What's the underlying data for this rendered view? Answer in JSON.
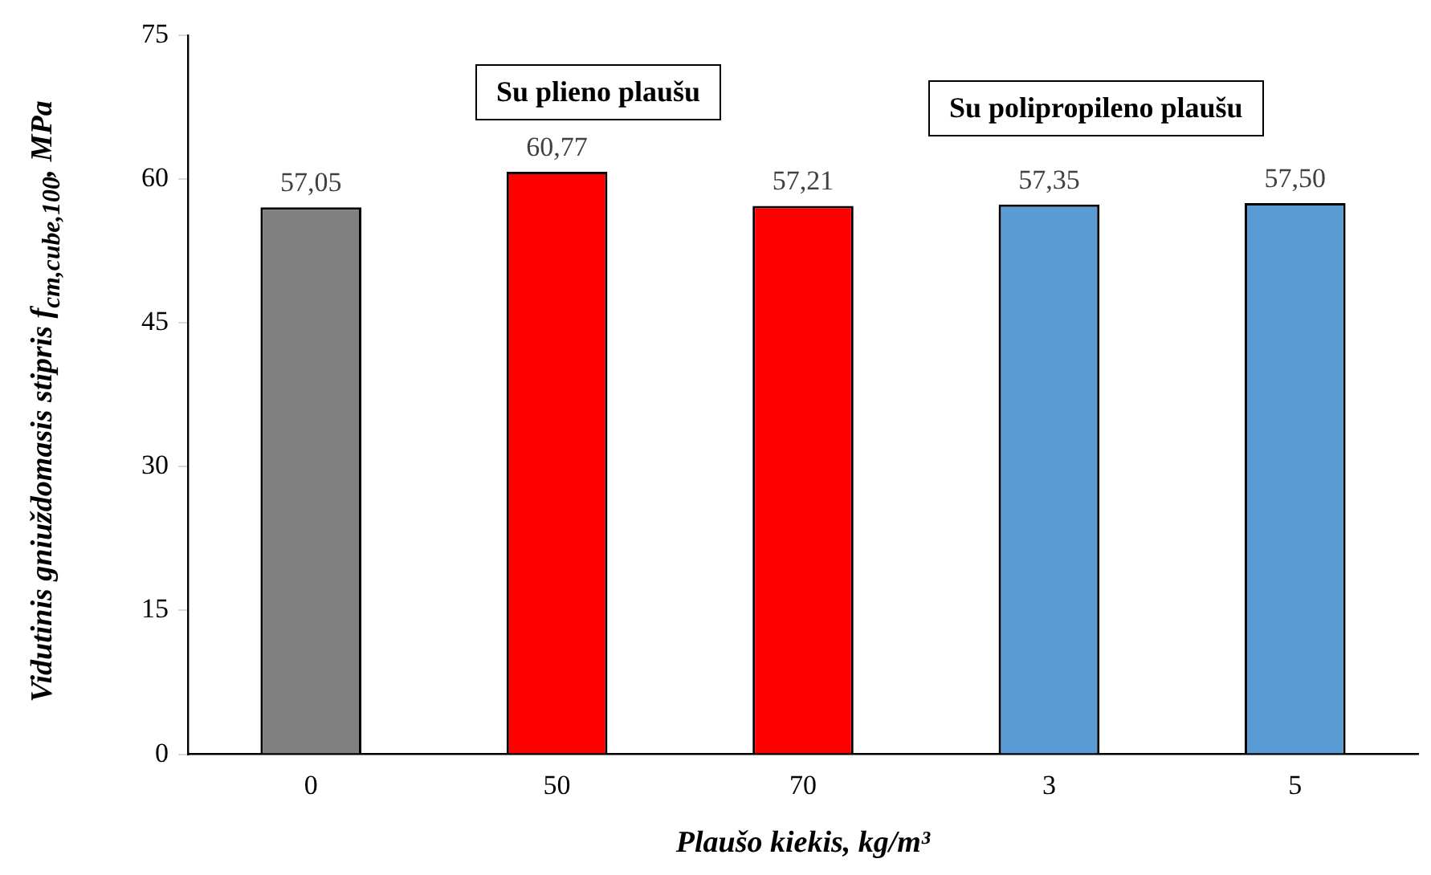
{
  "chart_data": {
    "type": "bar",
    "categories": [
      "0",
      "50",
      "70",
      "3",
      "5"
    ],
    "values": [
      57.05,
      60.77,
      57.21,
      57.35,
      57.5
    ],
    "colors": [
      "#808080",
      "#ff0000",
      "#ff0000",
      "#5b9bd5",
      "#5b9bd5"
    ],
    "value_labels": [
      "57,05",
      "60,77",
      "57,21",
      "57,35",
      "57,50"
    ],
    "ylim": [
      0,
      75
    ],
    "yticks": [
      0,
      15,
      30,
      45,
      60,
      75
    ],
    "ylabel": "Vidutinis gniuždomasis stipris f$_{cm,cube,100}$, MPa",
    "xlabel": "Plaušo kiekis, kg/m³",
    "annotations": [
      "Su plieno plaušu",
      "Su polipropileno plaušu"
    ],
    "grid": false,
    "legend": false
  }
}
